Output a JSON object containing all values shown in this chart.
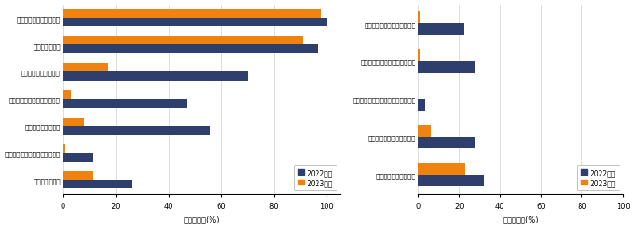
{
  "left_categories": [
    "手洗い・手指消毒の徹底",
    "机の消毒の徹底",
    "児童同士の距離の確保",
    "アクリル板など仕切りの設置",
    "黙食（無言で食事）",
    "孤食（席を離して一人で食事）",
    "食事時間の分散"
  ],
  "left_2022": [
    100,
    97,
    70,
    47,
    56,
    11,
    26
  ],
  "left_2023": [
    98,
    91,
    17,
    3,
    8,
    1,
    11
  ],
  "right_categories": [
    "屋外でのマスク着用の義務化",
    "唱歌の時のマスク着用の義務化",
    "唱歌の時のフェイスシールドの着用",
    "口で吹く楽器の使用の禁止",
    "水遊び・プールの禁止"
  ],
  "right_2022": [
    22,
    28,
    3,
    28,
    32
  ],
  "right_2023": [
    1,
    1,
    0,
    6,
    23
  ],
  "color_2022": "#2e3f6e",
  "color_2023": "#f0820f",
  "xlabel": "パーセント(%)",
  "legend_2022": "2022年度",
  "legend_2023": "2023年度",
  "left_xlim": [
    0,
    105
  ],
  "right_xlim": [
    0,
    100
  ],
  "left_xticks": [
    0,
    20,
    40,
    60,
    80,
    100
  ],
  "right_xticks": [
    0,
    20,
    40,
    60,
    80,
    100
  ]
}
